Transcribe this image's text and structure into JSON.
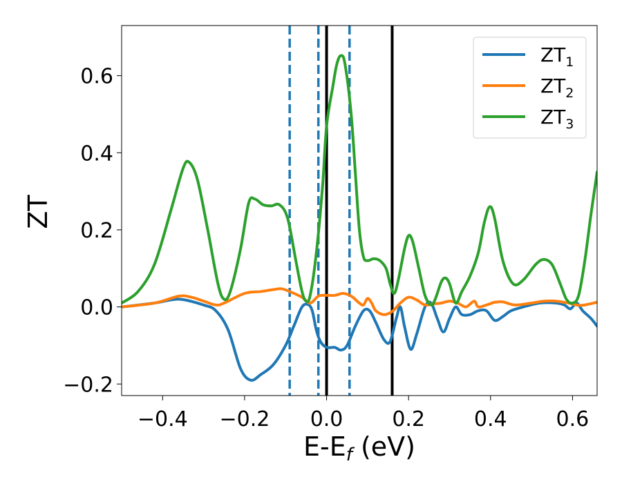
{
  "chart_data": {
    "type": "line",
    "title": "",
    "xlabel": "E-E",
    "xlabel_sub": "f",
    "xlabel_unit": " (eV)",
    "ylabel": "ZT",
    "xlim": [
      -0.5,
      0.66
    ],
    "ylim": [
      -0.23,
      0.73
    ],
    "xticks": [
      -0.4,
      -0.2,
      0.0,
      0.2,
      0.4,
      0.6
    ],
    "xtick_labels": [
      "−0.4",
      "−0.2",
      "0.0",
      "0.2",
      "0.4",
      "0.6"
    ],
    "yticks": [
      -0.2,
      0.0,
      0.2,
      0.4,
      0.6
    ],
    "ytick_labels": [
      "−0.2",
      "0.0",
      "0.2",
      "0.4",
      "0.6"
    ],
    "grid": false,
    "legend_position": "top-right",
    "vlines": [
      {
        "x": -0.09,
        "style": "dashed",
        "color": "#1f77b4"
      },
      {
        "x": -0.02,
        "style": "dashed",
        "color": "#1f77b4"
      },
      {
        "x": 0.056,
        "style": "dashed",
        "color": "#1f77b4"
      },
      {
        "x": 0.0,
        "style": "solid",
        "color": "#000000"
      },
      {
        "x": 0.16,
        "style": "solid",
        "color": "#000000"
      }
    ],
    "series": [
      {
        "name": "ZT",
        "sub": "1",
        "color": "#1f77b4",
        "points": [
          [
            -0.5,
            0.0
          ],
          [
            -0.42,
            0.01
          ],
          [
            -0.36,
            0.02
          ],
          [
            -0.3,
            0.005
          ],
          [
            -0.27,
            -0.01
          ],
          [
            -0.24,
            -0.06
          ],
          [
            -0.21,
            -0.16
          ],
          [
            -0.185,
            -0.19
          ],
          [
            -0.16,
            -0.175
          ],
          [
            -0.13,
            -0.15
          ],
          [
            -0.1,
            -0.1
          ],
          [
            -0.08,
            -0.05
          ],
          [
            -0.06,
            0.0
          ],
          [
            -0.045,
            0.006
          ],
          [
            -0.035,
            -0.01
          ],
          [
            -0.025,
            -0.06
          ],
          [
            -0.015,
            -0.09
          ],
          [
            0.0,
            -0.105
          ],
          [
            0.02,
            -0.105
          ],
          [
            0.035,
            -0.112
          ],
          [
            0.05,
            -0.1
          ],
          [
            0.07,
            -0.05
          ],
          [
            0.09,
            -0.01
          ],
          [
            0.105,
            -0.01
          ],
          [
            0.12,
            -0.04
          ],
          [
            0.14,
            -0.085
          ],
          [
            0.155,
            -0.09
          ],
          [
            0.17,
            -0.03
          ],
          [
            0.18,
            0.0
          ],
          [
            0.19,
            -0.05
          ],
          [
            0.205,
            -0.11
          ],
          [
            0.22,
            -0.07
          ],
          [
            0.24,
            0.0
          ],
          [
            0.255,
            0.01
          ],
          [
            0.27,
            -0.03
          ],
          [
            0.285,
            -0.065
          ],
          [
            0.3,
            -0.03
          ],
          [
            0.315,
            0.0
          ],
          [
            0.33,
            -0.02
          ],
          [
            0.35,
            -0.02
          ],
          [
            0.37,
            -0.01
          ],
          [
            0.39,
            -0.01
          ],
          [
            0.41,
            -0.035
          ],
          [
            0.43,
            -0.025
          ],
          [
            0.45,
            -0.01
          ],
          [
            0.48,
            0.0
          ],
          [
            0.52,
            0.01
          ],
          [
            0.56,
            0.01
          ],
          [
            0.58,
            0.005
          ],
          [
            0.595,
            -0.005
          ],
          [
            0.61,
            0.01
          ],
          [
            0.625,
            -0.01
          ],
          [
            0.645,
            -0.03
          ],
          [
            0.66,
            -0.05
          ]
        ]
      },
      {
        "name": "ZT",
        "sub": "2",
        "color": "#ff7f0e",
        "points": [
          [
            -0.5,
            0.0
          ],
          [
            -0.42,
            0.01
          ],
          [
            -0.36,
            0.028
          ],
          [
            -0.33,
            0.025
          ],
          [
            -0.3,
            0.015
          ],
          [
            -0.27,
            0.005
          ],
          [
            -0.25,
            0.01
          ],
          [
            -0.2,
            0.035
          ],
          [
            -0.16,
            0.04
          ],
          [
            -0.13,
            0.045
          ],
          [
            -0.11,
            0.047
          ],
          [
            -0.09,
            0.04
          ],
          [
            -0.06,
            0.025
          ],
          [
            -0.04,
            0.01
          ],
          [
            -0.02,
            0.028
          ],
          [
            0.0,
            0.03
          ],
          [
            0.02,
            0.03
          ],
          [
            0.04,
            0.035
          ],
          [
            0.06,
            0.028
          ],
          [
            0.08,
            0.01
          ],
          [
            0.09,
            0.005
          ],
          [
            0.1,
            0.022
          ],
          [
            0.11,
            0.01
          ],
          [
            0.12,
            -0.01
          ],
          [
            0.14,
            -0.02
          ],
          [
            0.16,
            -0.012
          ],
          [
            0.18,
            0.01
          ],
          [
            0.2,
            0.025
          ],
          [
            0.22,
            0.018
          ],
          [
            0.24,
            0.005
          ],
          [
            0.26,
            0.008
          ],
          [
            0.28,
            0.01
          ],
          [
            0.3,
            0.015
          ],
          [
            0.32,
            0.01
          ],
          [
            0.34,
            0.0
          ],
          [
            0.36,
            0.015
          ],
          [
            0.37,
            0.0
          ],
          [
            0.39,
            0.005
          ],
          [
            0.41,
            0.012
          ],
          [
            0.43,
            0.013
          ],
          [
            0.46,
            0.005
          ],
          [
            0.5,
            0.01
          ],
          [
            0.53,
            0.015
          ],
          [
            0.56,
            0.015
          ],
          [
            0.59,
            0.01
          ],
          [
            0.62,
            0.004
          ],
          [
            0.66,
            0.012
          ]
        ]
      },
      {
        "name": "ZT",
        "sub": "3",
        "color": "#2ca02c",
        "points": [
          [
            -0.5,
            0.01
          ],
          [
            -0.46,
            0.04
          ],
          [
            -0.42,
            0.11
          ],
          [
            -0.38,
            0.25
          ],
          [
            -0.35,
            0.36
          ],
          [
            -0.335,
            0.375
          ],
          [
            -0.315,
            0.33
          ],
          [
            -0.29,
            0.2
          ],
          [
            -0.265,
            0.06
          ],
          [
            -0.25,
            0.02
          ],
          [
            -0.235,
            0.04
          ],
          [
            -0.21,
            0.15
          ],
          [
            -0.19,
            0.27
          ],
          [
            -0.175,
            0.28
          ],
          [
            -0.155,
            0.265
          ],
          [
            -0.135,
            0.262
          ],
          [
            -0.115,
            0.265
          ],
          [
            -0.095,
            0.23
          ],
          [
            -0.075,
            0.12
          ],
          [
            -0.06,
            0.04
          ],
          [
            -0.05,
            0.015
          ],
          [
            -0.04,
            0.03
          ],
          [
            -0.025,
            0.14
          ],
          [
            -0.01,
            0.31
          ],
          [
            0.0,
            0.47
          ],
          [
            0.015,
            0.57
          ],
          [
            0.025,
            0.63
          ],
          [
            0.035,
            0.652
          ],
          [
            0.045,
            0.63
          ],
          [
            0.06,
            0.5
          ],
          [
            0.07,
            0.35
          ],
          [
            0.08,
            0.2
          ],
          [
            0.09,
            0.13
          ],
          [
            0.1,
            0.12
          ],
          [
            0.115,
            0.125
          ],
          [
            0.13,
            0.12
          ],
          [
            0.145,
            0.1
          ],
          [
            0.155,
            0.06
          ],
          [
            0.165,
            0.035
          ],
          [
            0.175,
            0.07
          ],
          [
            0.19,
            0.15
          ],
          [
            0.2,
            0.185
          ],
          [
            0.21,
            0.17
          ],
          [
            0.225,
            0.1
          ],
          [
            0.24,
            0.03
          ],
          [
            0.255,
            0.005
          ],
          [
            0.265,
            0.02
          ],
          [
            0.28,
            0.065
          ],
          [
            0.29,
            0.075
          ],
          [
            0.3,
            0.06
          ],
          [
            0.315,
            0.01
          ],
          [
            0.33,
            0.04
          ],
          [
            0.35,
            0.08
          ],
          [
            0.37,
            0.14
          ],
          [
            0.385,
            0.22
          ],
          [
            0.398,
            0.26
          ],
          [
            0.41,
            0.23
          ],
          [
            0.43,
            0.12
          ],
          [
            0.455,
            0.06
          ],
          [
            0.48,
            0.07
          ],
          [
            0.51,
            0.11
          ],
          [
            0.53,
            0.123
          ],
          [
            0.55,
            0.11
          ],
          [
            0.57,
            0.06
          ],
          [
            0.585,
            0.02
          ],
          [
            0.6,
            0.01
          ],
          [
            0.615,
            0.03
          ],
          [
            0.63,
            0.12
          ],
          [
            0.645,
            0.24
          ],
          [
            0.66,
            0.35
          ]
        ]
      }
    ]
  }
}
